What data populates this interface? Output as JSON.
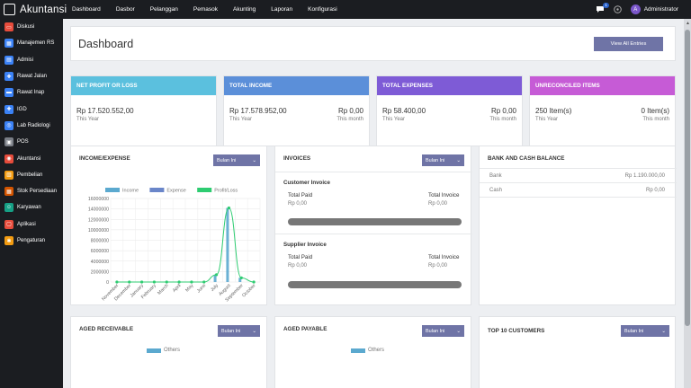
{
  "app": {
    "title": "Akuntansi"
  },
  "topnav": [
    "Dashboard",
    "Dasbor",
    "Pelanggan",
    "Pemasok",
    "Akunting",
    "Laporan",
    "Konfigurasi"
  ],
  "user": {
    "name": "Administrator",
    "initial": "A",
    "notifications": "1"
  },
  "sidebar": [
    {
      "label": "Diskusi",
      "color": "#e74c3c"
    },
    {
      "label": "Manajemen RS",
      "color": "#3b82f6"
    },
    {
      "label": "Admisi",
      "color": "#3b82f6"
    },
    {
      "label": "Rawat Jalan",
      "color": "#3b82f6"
    },
    {
      "label": "Rawat Inap",
      "color": "#3b82f6"
    },
    {
      "label": "IGD",
      "color": "#3b82f6"
    },
    {
      "label": "Lab Radiologi",
      "color": "#3b82f6"
    },
    {
      "label": "POS",
      "color": "#7b7f87"
    },
    {
      "label": "Akuntansi",
      "color": "#e74c3c"
    },
    {
      "label": "Pembelian",
      "color": "#f39c12"
    },
    {
      "label": "Stok Persediaan",
      "color": "#d35400"
    },
    {
      "label": "Karyawan",
      "color": "#16a085"
    },
    {
      "label": "Aplikasi",
      "color": "#e74c3c"
    },
    {
      "label": "Pengaturan",
      "color": "#f39c12"
    }
  ],
  "dashboard": {
    "title": "Dashboard",
    "view_all": "View All Entries"
  },
  "cards": [
    {
      "title": "NET PROFIT OR LOSS",
      "color": "#5bc0de",
      "left_value": "Rp 17.520.552,00",
      "left_label": "This Year",
      "right_value": "",
      "right_label": ""
    },
    {
      "title": "TOTAL INCOME",
      "color": "#5b8fd9",
      "left_value": "Rp 17.578.952,00",
      "left_label": "This Year",
      "right_value": "Rp 0,00",
      "right_label": "This month"
    },
    {
      "title": "TOTAL EXPENSES",
      "color": "#7e5bd6",
      "left_value": "Rp 58.400,00",
      "left_label": "This Year",
      "right_value": "Rp 0,00",
      "right_label": "This month"
    },
    {
      "title": "UNRECONCILED ITEMS",
      "color": "#c65bd6",
      "left_value": "250 Item(s)",
      "left_label": "This Year",
      "right_value": "0 Item(s)",
      "right_label": "This month"
    }
  ],
  "income_expense": {
    "title": "INCOME/EXPENSE",
    "period": "Bulan Ini"
  },
  "chart_data": {
    "type": "bar",
    "title": "",
    "categories": [
      "November",
      "December",
      "January",
      "February",
      "March",
      "April",
      "May",
      "June",
      "July",
      "August",
      "September",
      "October"
    ],
    "series": [
      {
        "name": "Income",
        "color": "#5ba9cf",
        "values": [
          0,
          0,
          0,
          0,
          0,
          0,
          0,
          0,
          1400000,
          14200000,
          800000,
          0
        ]
      },
      {
        "name": "Expense",
        "color": "#6a86c9",
        "values": [
          0,
          0,
          0,
          0,
          0,
          0,
          0,
          0,
          0,
          0,
          0,
          0
        ]
      },
      {
        "name": "Profit/Loss",
        "color": "#2ecc71",
        "values": [
          0,
          0,
          0,
          0,
          0,
          0,
          0,
          0,
          1400000,
          14200000,
          800000,
          0
        ]
      }
    ],
    "ylim": [
      0,
      16000000
    ],
    "yticks": [
      0,
      2000000,
      4000000,
      6000000,
      8000000,
      10000000,
      12000000,
      14000000,
      16000000
    ],
    "xlabel": "",
    "ylabel": "",
    "legend": "top"
  },
  "invoices": {
    "title": "INVOICES",
    "period": "Bulan Ini",
    "customer": {
      "heading": "Customer Invoice",
      "paid_label": "Total Paid",
      "paid_value": "Rp 0,00",
      "inv_label": "Total Invoice",
      "inv_value": "Rp 0,00"
    },
    "supplier": {
      "heading": "Supplier Invoice",
      "paid_label": "Total Paid",
      "paid_value": "Rp 0,00",
      "inv_label": "Total Invoice",
      "inv_value": "Rp 0,00"
    }
  },
  "bank": {
    "title": "BANK AND CASH BALANCE",
    "rows": [
      {
        "name": "Bank",
        "value": "Rp 1.190.000,00"
      },
      {
        "name": "Cash",
        "value": "Rp 0,00"
      }
    ]
  },
  "aged_receivable": {
    "title": "AGED RECEIVABLE",
    "period": "Bulan Ini",
    "legend": "Others"
  },
  "aged_payable": {
    "title": "AGED PAYABLE",
    "period": "Bulan Ini",
    "legend": "Others"
  },
  "top_customers": {
    "title": "TOP 10 CUSTOMERS",
    "period": "Bulan Ini"
  }
}
